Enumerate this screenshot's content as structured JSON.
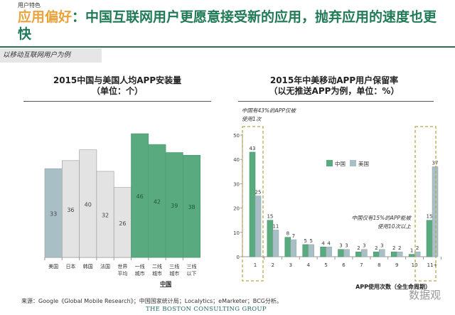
{
  "header": {
    "category": "用户特色",
    "title_highlight": "应用偏好",
    "title_rest": "：中国互联网用户更愿意接受新的应用，抛弃应用的速度也更快",
    "tag": "以移动互联网用户为例"
  },
  "footer": {
    "source": "来源：Google《Global Mobile Research》；中国国家统计局；Localytics；eMarketer；BCG分析。",
    "logo": "THE BOSTON CONSULTING GROUP",
    "watermark": "数据观"
  },
  "colors": {
    "china": "#5aaa7f",
    "usa": "#a9bfc6",
    "other": "#e3e3e3",
    "title_green": "#1f7a55",
    "title_orange": "#e8a33c",
    "dashed_box": "#b7a84a"
  },
  "chart_data": [
    {
      "type": "bar",
      "title": "2015中国与美国人均APP安装量",
      "subtitle": "（单位：个）",
      "categories": [
        "美国",
        "日本",
        "韩国",
        "法国",
        "世界平均",
        "一线城市",
        "二线城市",
        "三线城市",
        "三线以下"
      ],
      "category_lines": [
        [
          "美国"
        ],
        [
          "日本"
        ],
        [
          "韩国"
        ],
        [
          "法国"
        ],
        [
          "世界",
          "平均"
        ],
        [
          "一线",
          "城市"
        ],
        [
          "二线",
          "城市"
        ],
        [
          "三线",
          "城市"
        ],
        [
          "三线",
          "以下"
        ]
      ],
      "values": [
        33,
        36,
        40,
        32,
        26,
        46,
        42,
        39,
        38
      ],
      "bar_groups": [
        "usa",
        "other",
        "other",
        "other",
        "other",
        "china",
        "china",
        "china",
        "china"
      ],
      "group_label": "中国",
      "ylim": [
        0,
        50
      ],
      "grid": false
    },
    {
      "type": "bar",
      "title": "2015年中美移动APP用户保留率",
      "subtitle": "（以无推送APP为例，单位：%）",
      "categories": [
        "1",
        "2",
        "3",
        "4",
        "5",
        "6",
        "7",
        "8",
        "9",
        "10",
        "11+"
      ],
      "series": [
        {
          "name": "中国",
          "values": [
            43,
            15,
            8,
            5,
            4,
            3,
            2,
            2,
            2,
            1,
            15
          ]
        },
        {
          "name": "美国",
          "values": [
            25,
            11,
            7,
            5,
            4,
            3,
            3,
            3,
            2,
            2,
            37
          ]
        }
      ],
      "yticks": [
        0,
        10,
        20,
        30,
        40,
        50
      ],
      "ylim": [
        0,
        50
      ],
      "xlabel": "APP使用次数（全生命周期）",
      "legend": "top-center",
      "grid": false,
      "annotations": [
        "中国有43%的APP仅被使用1次",
        "中国仅有15%的APP能被使用10次以上"
      ]
    }
  ]
}
